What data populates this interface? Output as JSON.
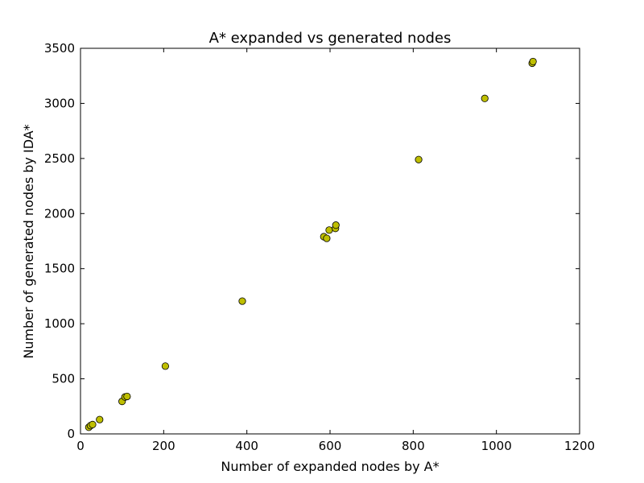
{
  "chart_data": {
    "type": "scatter",
    "title": "A* expanded vs generated nodes",
    "xlabel": "Number of expanded nodes by A*",
    "ylabel": "Number of generated nodes by IDA*",
    "xlim": [
      0,
      1200
    ],
    "ylim": [
      0,
      3500
    ],
    "xticks": [
      0,
      200,
      400,
      600,
      800,
      1000,
      1200
    ],
    "yticks": [
      0,
      500,
      1000,
      1500,
      2000,
      2500,
      3000,
      3500
    ],
    "grid": false,
    "legend": "none",
    "marker_color": "#bfbf00",
    "marker_edge_color": "#000000",
    "points": [
      {
        "x": 20,
        "y": 60
      },
      {
        "x": 24,
        "y": 75
      },
      {
        "x": 29,
        "y": 85
      },
      {
        "x": 46,
        "y": 130
      },
      {
        "x": 100,
        "y": 295
      },
      {
        "x": 107,
        "y": 335
      },
      {
        "x": 112,
        "y": 340
      },
      {
        "x": 204,
        "y": 615
      },
      {
        "x": 389,
        "y": 1205
      },
      {
        "x": 585,
        "y": 1790
      },
      {
        "x": 592,
        "y": 1775
      },
      {
        "x": 598,
        "y": 1850
      },
      {
        "x": 613,
        "y": 1865
      },
      {
        "x": 614,
        "y": 1895
      },
      {
        "x": 813,
        "y": 2490
      },
      {
        "x": 972,
        "y": 3045
      },
      {
        "x": 1086,
        "y": 3365
      },
      {
        "x": 1088,
        "y": 3380
      }
    ]
  }
}
